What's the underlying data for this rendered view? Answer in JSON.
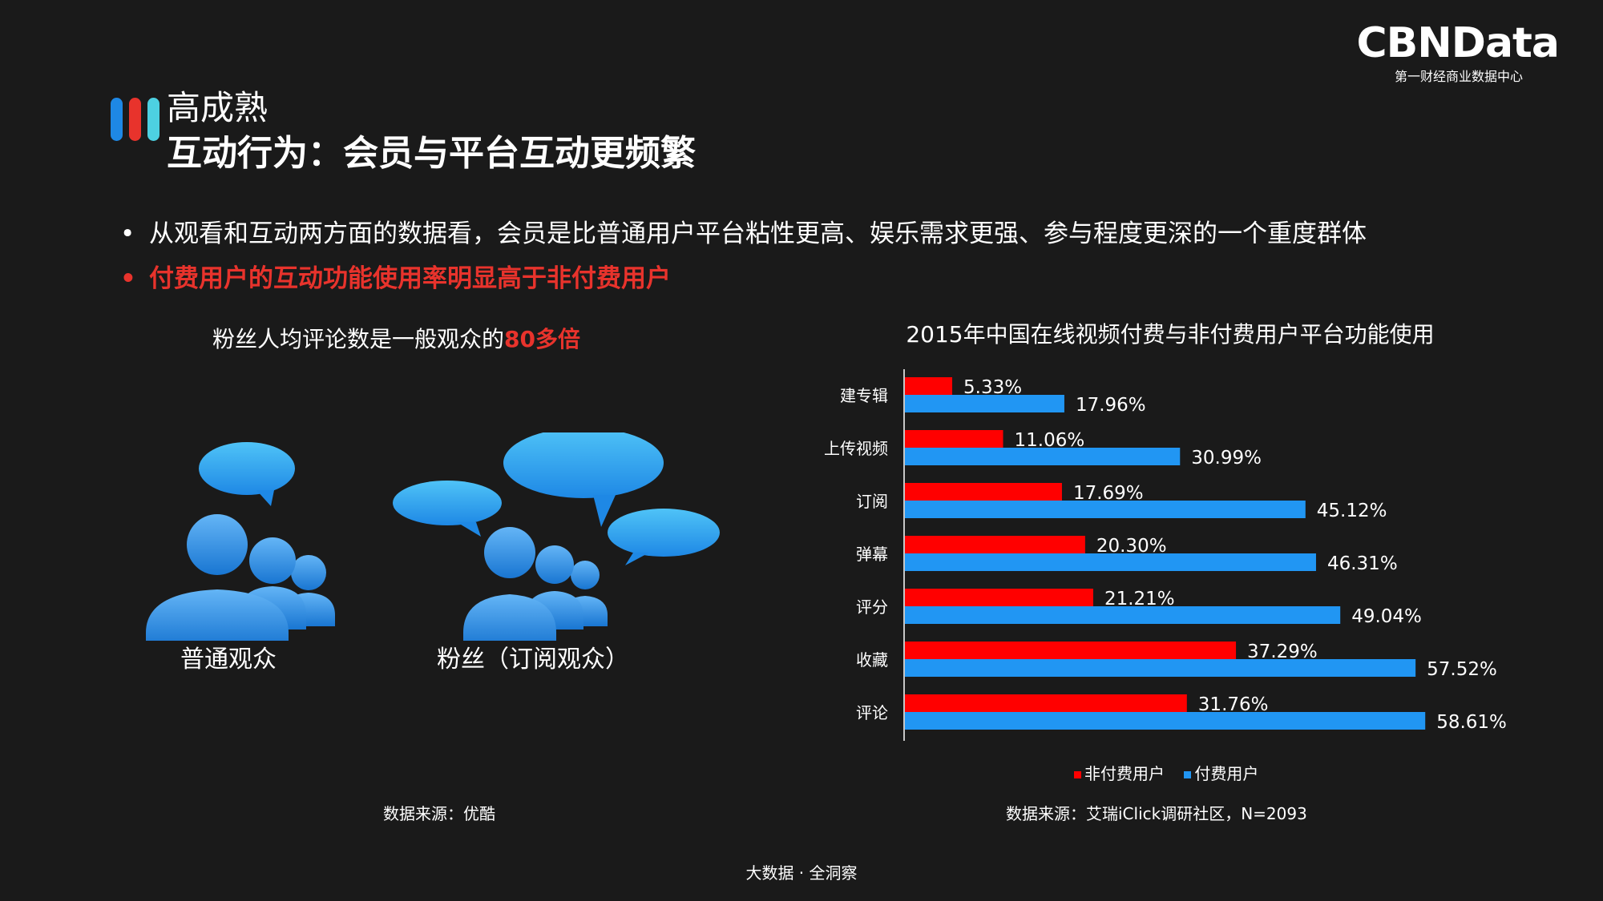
{
  "logo": {
    "main": "CBNData",
    "sub": "第一财经商业数据中心"
  },
  "header": {
    "section": "高成熟",
    "title": "互动行为：会员与平台互动更频繁",
    "icon_colors": [
      "#1e88e5",
      "#e8332c",
      "#4dd0e1"
    ]
  },
  "bullets": [
    {
      "text": "从观看和互动两方面的数据看，会员是比普通用户平台粘性更高、娱乐需求更强、参与程度更深的一个重度群体",
      "color": "#ffffff"
    },
    {
      "text": "付费用户的互动功能使用率明显高于非付费用户",
      "color": "#e8332c"
    }
  ],
  "left_panel": {
    "headline_prefix": "粉丝人均评论数是一般观众的",
    "headline_highlight": "80多倍",
    "groups": [
      {
        "label": "普通观众"
      },
      {
        "label": "粉丝（订阅观众）"
      }
    ],
    "source": "数据来源：优酷"
  },
  "chart_data": {
    "type": "bar",
    "orientation": "horizontal",
    "title": "2015年中国在线视频付费与非付费用户平台功能使用",
    "categories": [
      "建专辑",
      "上传视频",
      "订阅",
      "弹幕",
      "评分",
      "收藏",
      "评论"
    ],
    "series": [
      {
        "name": "非付费用户",
        "color": "#ff0000",
        "values": [
          5.33,
          11.06,
          17.69,
          20.3,
          21.21,
          37.29,
          31.76
        ]
      },
      {
        "name": "付费用户",
        "color": "#2196f3",
        "values": [
          17.96,
          30.99,
          45.12,
          46.31,
          49.04,
          57.52,
          58.61
        ]
      }
    ],
    "value_suffix": "%",
    "xlim": [
      0,
      65
    ],
    "legend_position": "bottom",
    "grid": false
  },
  "chart_source": "数据来源：艾瑞iClick调研社区，N=2093",
  "footer": "大数据 · 全洞察",
  "colors": {
    "background": "#1a1a1a",
    "accent_red": "#e8332c",
    "accent_blue": "#2196f3"
  }
}
